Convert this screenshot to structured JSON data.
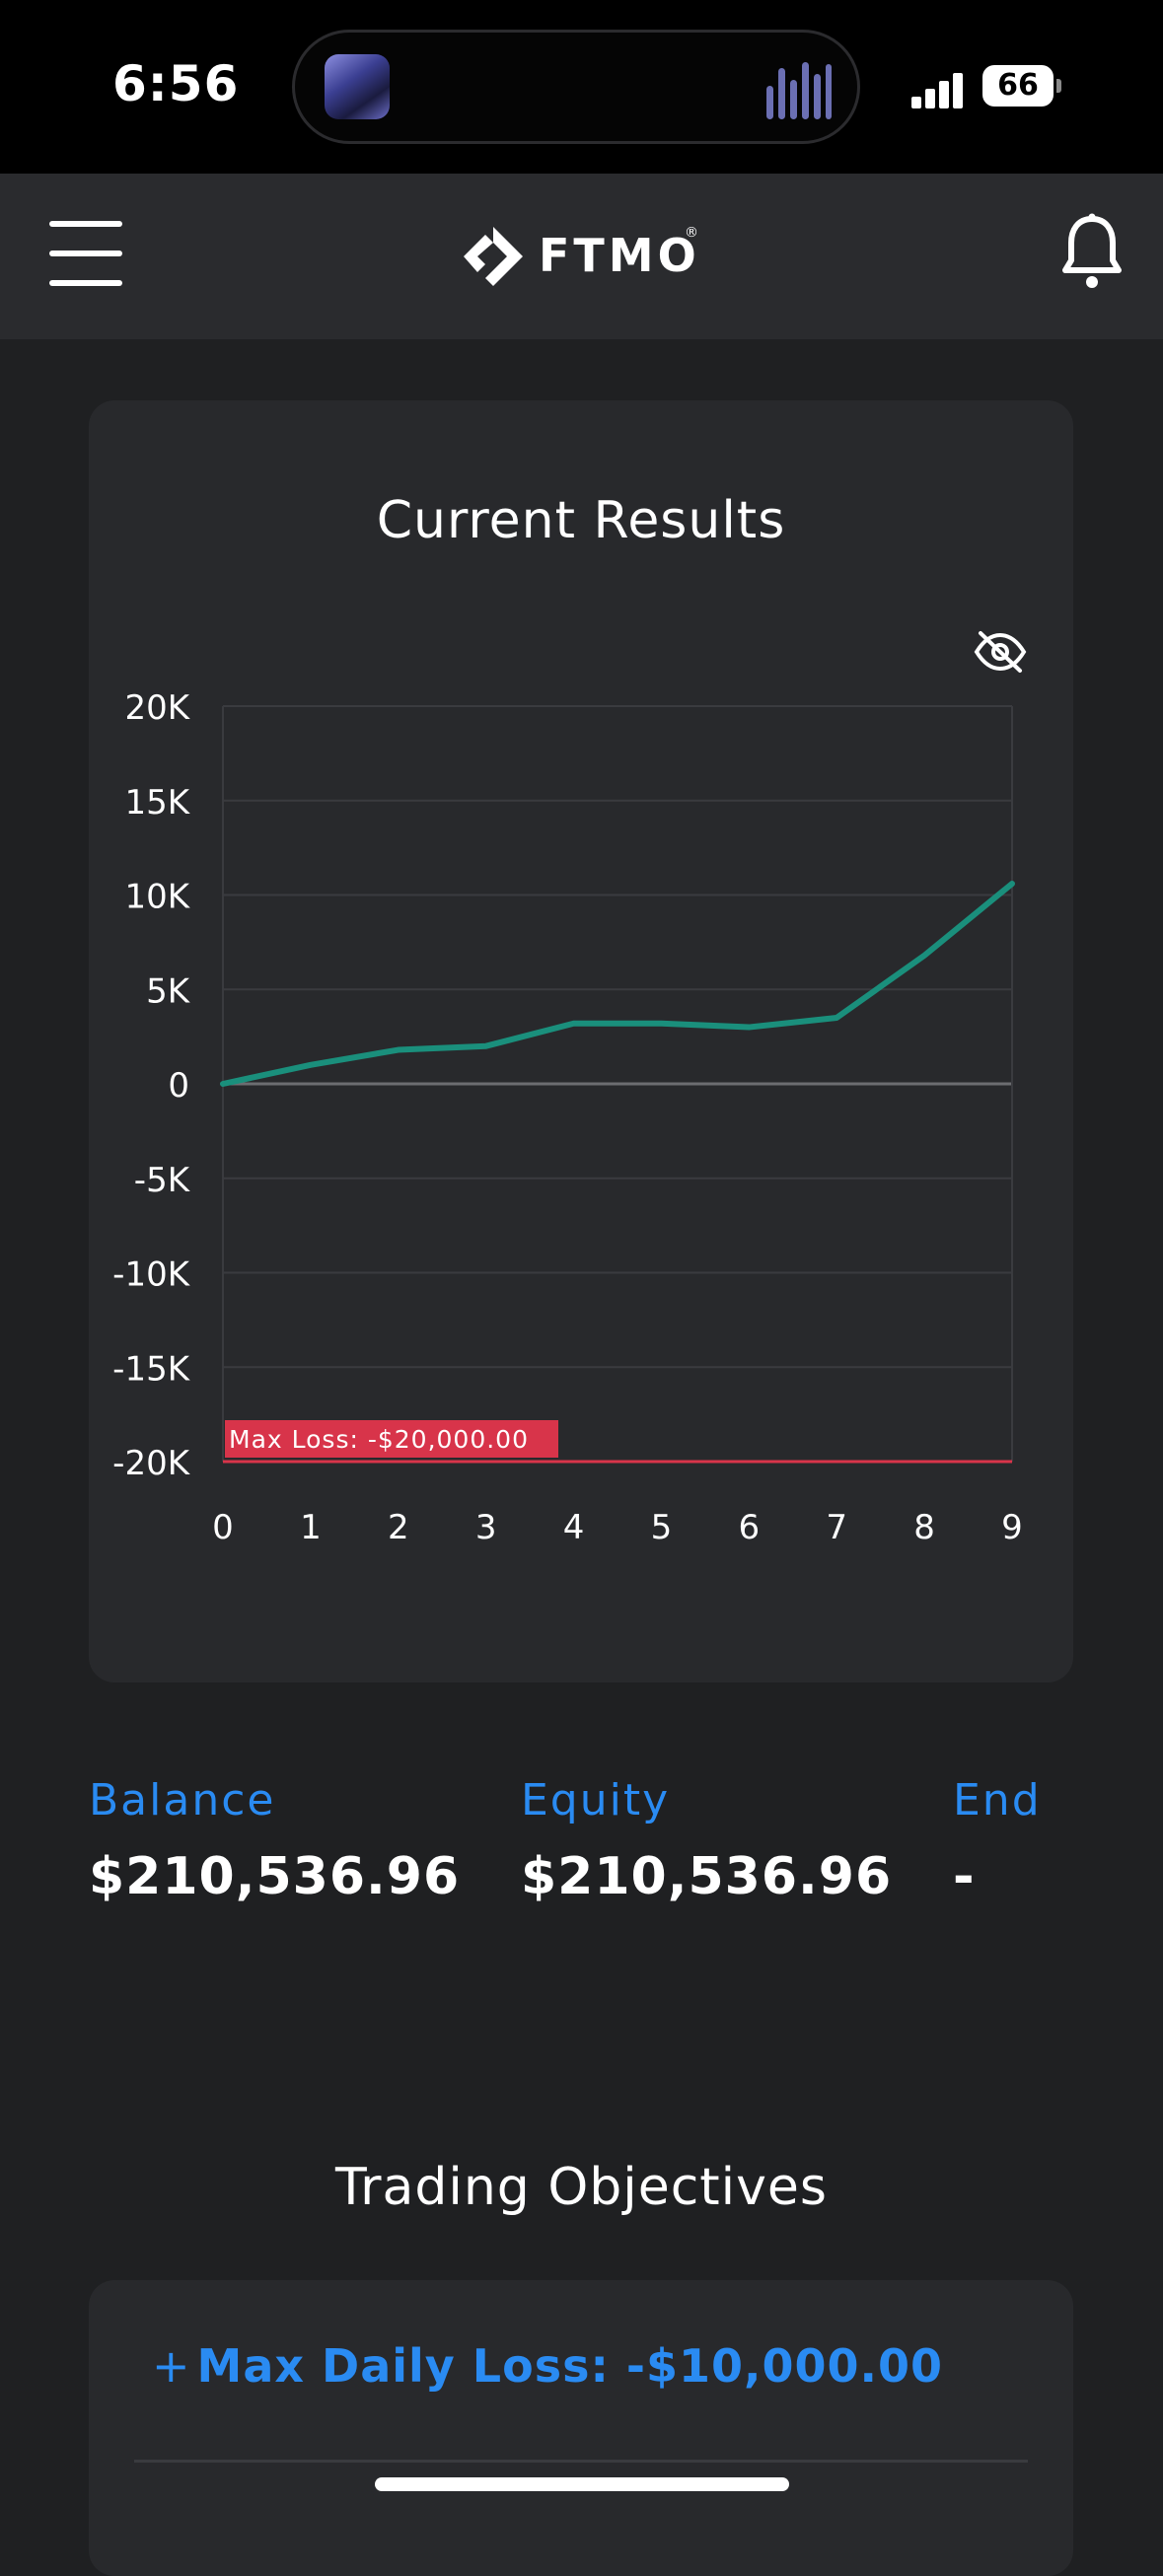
{
  "status_bar": {
    "time": "6:56",
    "battery": "66"
  },
  "app_bar": {
    "logo_text": "FTMO",
    "logo_mark": "®"
  },
  "results": {
    "title": "Current Results"
  },
  "chart_data": {
    "type": "line",
    "x": [
      0,
      1,
      2,
      3,
      4,
      5,
      6,
      7,
      8,
      9
    ],
    "x_tick_labels": [
      "0",
      "1",
      "2",
      "3",
      "4",
      "5",
      "6",
      "7",
      "8",
      "9"
    ],
    "series": [
      {
        "values": [
          0,
          1000,
          1800,
          2000,
          3200,
          3200,
          3000,
          3500,
          6800,
          10600
        ],
        "color": "#1a8f7c"
      }
    ],
    "y_ticks": [
      20000,
      15000,
      10000,
      5000,
      0,
      -5000,
      -10000,
      -15000,
      -20000
    ],
    "y_tick_labels": [
      "20K",
      "15K",
      "10K",
      "5K",
      "0",
      "-5K",
      "-10K",
      "-15K",
      "-20K"
    ],
    "ylim": [
      -20000,
      20000
    ],
    "xlim": [
      0,
      9
    ],
    "grid": true,
    "annotations": [
      {
        "label": "Max Loss: -$20,000.00",
        "y": -20000,
        "color": "#d8344a"
      }
    ]
  },
  "stats": {
    "balance_label": "Balance",
    "balance_value": "$210,536.96",
    "equity_label": "Equity",
    "equity_value": "$210,536.96",
    "end_label": "End",
    "end_value": "-"
  },
  "objectives": {
    "title": "Trading Objectives",
    "items": [
      {
        "prefix": "+",
        "label": "Max Daily Loss: -$10,000.00"
      }
    ]
  },
  "colors": {
    "accent": "#2a8bf2",
    "line": "#1a8f7c",
    "loss": "#d8344a"
  }
}
